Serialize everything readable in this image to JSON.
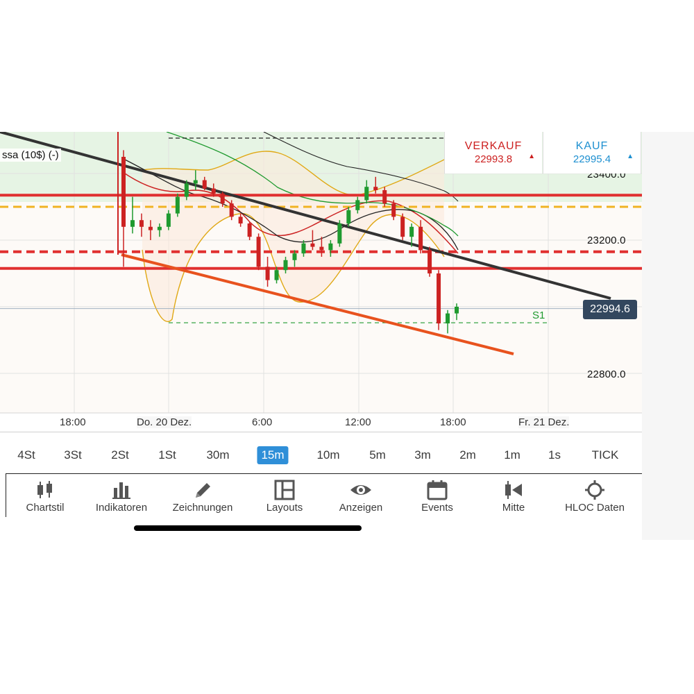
{
  "colors": {
    "sell": "#cc1f1f",
    "buy": "#1d8fd0",
    "active_tab": "#2f8fd8",
    "current_price_badge": "#33475e",
    "support": "#1f9a2f",
    "resistance": "#e03030",
    "pivot": "#f0b323",
    "trendline_down": "#333333",
    "trendline_lower": "#e8521e",
    "bollinger": "#e0a814"
  },
  "chart": {
    "instrument_label": "ssa (10$) (-)",
    "price_axis": [
      "23400.0",
      "23200.0",
      "22800.0"
    ],
    "time_axis": [
      "18:00",
      "Do. 20 Dez.",
      "6:00",
      "12:00",
      "18:00",
      "Fr. 21 Dez."
    ],
    "current_price": "22994.6",
    "support_label": "S1"
  },
  "chart_data": {
    "type": "candlestick",
    "ylim": [
      22695,
      23500
    ],
    "levels": {
      "resistance": [
        23335,
        23115
      ],
      "resistance_dashed": 23165,
      "pivot_dashed": 23300,
      "support_s1": 22952,
      "current": 22994.6
    },
    "candles": [
      [
        23450,
        23470,
        23120,
        23240
      ],
      [
        23240,
        23330,
        23220,
        23260
      ],
      [
        23260,
        23280,
        23210,
        23240
      ],
      [
        23240,
        23260,
        23200,
        23230
      ],
      [
        23230,
        23250,
        23210,
        23240
      ],
      [
        23240,
        23290,
        23230,
        23280
      ],
      [
        23280,
        23340,
        23270,
        23330
      ],
      [
        23330,
        23380,
        23320,
        23370
      ],
      [
        23370,
        23410,
        23350,
        23380
      ],
      [
        23380,
        23390,
        23350,
        23355
      ],
      [
        23355,
        23370,
        23330,
        23340
      ],
      [
        23340,
        23345,
        23300,
        23310
      ],
      [
        23310,
        23320,
        23260,
        23270
      ],
      [
        23270,
        23280,
        23240,
        23250
      ],
      [
        23250,
        23255,
        23200,
        23210
      ],
      [
        23210,
        23220,
        23110,
        23120
      ],
      [
        23120,
        23150,
        23060,
        23080
      ],
      [
        23080,
        23120,
        23070,
        23110
      ],
      [
        23110,
        23150,
        23100,
        23140
      ],
      [
        23140,
        23170,
        23120,
        23160
      ],
      [
        23160,
        23200,
        23150,
        23190
      ],
      [
        23190,
        23230,
        23170,
        23180
      ],
      [
        23180,
        23210,
        23150,
        23170
      ],
      [
        23170,
        23200,
        23150,
        23190
      ],
      [
        23190,
        23260,
        23180,
        23250
      ],
      [
        23250,
        23300,
        23240,
        23290
      ],
      [
        23290,
        23330,
        23280,
        23320
      ],
      [
        23320,
        23380,
        23310,
        23360
      ],
      [
        23360,
        23390,
        23340,
        23350
      ],
      [
        23350,
        23360,
        23300,
        23310
      ],
      [
        23310,
        23320,
        23260,
        23270
      ],
      [
        23270,
        23280,
        23200,
        23210
      ],
      [
        23210,
        23250,
        23180,
        23240
      ],
      [
        23240,
        23260,
        23160,
        23170
      ],
      [
        23170,
        23180,
        23090,
        23100
      ],
      [
        23100,
        23110,
        22930,
        22950
      ],
      [
        22950,
        22990,
        22920,
        22980
      ],
      [
        22980,
        23010,
        22960,
        23000
      ]
    ]
  },
  "quote": {
    "sell_label": "VERKAUF",
    "sell_price": "22993.8",
    "sell_arrow": "▲",
    "buy_label": "KAUF",
    "buy_price": "22995.4",
    "buy_arrow": "▲"
  },
  "timeframes": [
    {
      "label": "4St",
      "active": false
    },
    {
      "label": "3St",
      "active": false
    },
    {
      "label": "2St",
      "active": false
    },
    {
      "label": "1St",
      "active": false
    },
    {
      "label": "30m",
      "active": false
    },
    {
      "label": "15m",
      "active": true
    },
    {
      "label": "10m",
      "active": false
    },
    {
      "label": "5m",
      "active": false
    },
    {
      "label": "3m",
      "active": false
    },
    {
      "label": "2m",
      "active": false
    },
    {
      "label": "1m",
      "active": false
    },
    {
      "label": "1s",
      "active": false
    },
    {
      "label": "TICK",
      "active": false
    }
  ],
  "toolbar": [
    {
      "label": "Chartstil",
      "icon": "candlestick-icon"
    },
    {
      "label": "Indikatoren",
      "icon": "bar-chart-icon"
    },
    {
      "label": "Zeichnungen",
      "icon": "pencil-icon"
    },
    {
      "label": "Layouts",
      "icon": "layout-icon"
    },
    {
      "label": "Anzeigen",
      "icon": "eye-icon"
    },
    {
      "label": "Events",
      "icon": "calendar-icon"
    },
    {
      "label": "Mitte",
      "icon": "center-icon"
    },
    {
      "label": "HLOC Daten",
      "icon": "crosshair-icon"
    }
  ]
}
